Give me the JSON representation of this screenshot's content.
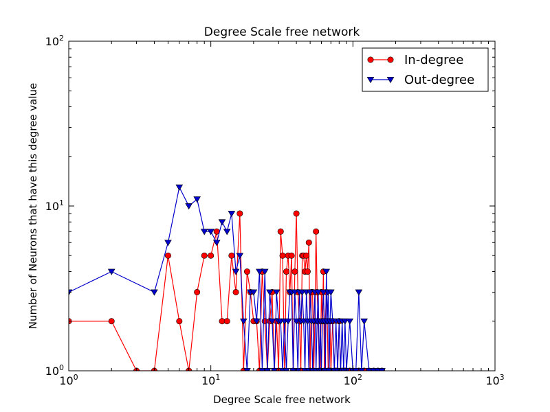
{
  "chart_data": {
    "type": "line",
    "title": "Degree Scale free network",
    "xlabel": "Degree Scale free network",
    "ylabel": "Number of Neurons that have this degree value",
    "xscale": "log",
    "yscale": "log",
    "xlim": [
      1,
      1000
    ],
    "ylim": [
      1,
      100
    ],
    "x_ticks": [
      {
        "base": "10",
        "exp": "0"
      },
      {
        "base": "10",
        "exp": "1"
      },
      {
        "base": "10",
        "exp": "2"
      },
      {
        "base": "10",
        "exp": "3"
      }
    ],
    "y_ticks": [
      {
        "base": "10",
        "exp": "0"
      },
      {
        "base": "10",
        "exp": "1"
      },
      {
        "base": "10",
        "exp": "2"
      }
    ],
    "grid": false,
    "legend_position": "top-right",
    "series": [
      {
        "name": "In-degree",
        "color": "#ff0000",
        "marker": "circle",
        "x": [
          1,
          2,
          3,
          4,
          5,
          6,
          7,
          8,
          9,
          10,
          11,
          12,
          13,
          14,
          15,
          16,
          17,
          18,
          19,
          20,
          21,
          22,
          23,
          24,
          25,
          26,
          27,
          28,
          29,
          30,
          31,
          32,
          33,
          34,
          35,
          36,
          37,
          38,
          39,
          40,
          41,
          42,
          43,
          44,
          45,
          46,
          47,
          48,
          49,
          50,
          51,
          52,
          53,
          54,
          55,
          56,
          57,
          58,
          59,
          60,
          61,
          62,
          63,
          64,
          65,
          66,
          67,
          68,
          69,
          70,
          72,
          74,
          76,
          78,
          80,
          82,
          85,
          88,
          90,
          95,
          100,
          110,
          120,
          130,
          140,
          150,
          160
        ],
        "y": [
          2,
          2,
          1,
          1,
          5,
          2,
          1,
          3,
          5,
          5,
          7,
          2,
          2,
          5,
          3,
          9,
          1,
          4,
          3,
          2,
          2,
          1,
          4,
          2,
          1,
          2,
          3,
          1,
          2,
          1,
          7,
          5,
          1,
          4,
          5,
          3,
          5,
          1,
          4,
          9,
          3,
          2,
          1,
          5,
          5,
          4,
          5,
          4,
          6,
          1,
          3,
          3,
          1,
          2,
          7,
          3,
          2,
          1,
          1,
          3,
          2,
          4,
          1,
          2,
          3,
          2,
          1,
          1,
          2,
          1,
          2,
          1,
          1,
          1,
          2,
          1,
          1,
          1,
          1,
          1,
          1,
          1,
          1,
          1,
          1,
          1,
          1
        ]
      },
      {
        "name": "Out-degree",
        "color": "#0000cc",
        "marker": "triangle-down",
        "x": [
          1,
          2,
          4,
          5,
          6,
          7,
          8,
          9,
          10,
          11,
          12,
          13,
          14,
          15,
          16,
          17,
          18,
          19,
          20,
          21,
          22,
          23,
          24,
          25,
          26,
          27,
          28,
          29,
          30,
          31,
          32,
          33,
          34,
          35,
          36,
          37,
          38,
          39,
          40,
          41,
          42,
          43,
          44,
          45,
          46,
          47,
          48,
          49,
          50,
          51,
          52,
          53,
          54,
          55,
          56,
          57,
          58,
          59,
          60,
          61,
          62,
          63,
          64,
          65,
          66,
          67,
          68,
          69,
          70,
          72,
          74,
          76,
          78,
          80,
          82,
          84,
          86,
          88,
          90,
          95,
          100,
          105,
          110,
          115,
          120,
          130,
          140,
          150,
          160
        ],
        "y": [
          3,
          4,
          3,
          6,
          13,
          10,
          11,
          7,
          7,
          6,
          8,
          7,
          9,
          4,
          5,
          2,
          1,
          3,
          3,
          2,
          4,
          1,
          4,
          1,
          3,
          2,
          1,
          3,
          2,
          2,
          1,
          2,
          1,
          2,
          3,
          3,
          1,
          3,
          2,
          1,
          3,
          2,
          3,
          2,
          1,
          3,
          2,
          1,
          3,
          2,
          1,
          2,
          3,
          1,
          2,
          3,
          1,
          2,
          1,
          2,
          3,
          2,
          1,
          4,
          2,
          3,
          1,
          2,
          3,
          2,
          1,
          2,
          1,
          2,
          1,
          2,
          1,
          2,
          1,
          2,
          1,
          1,
          3,
          1,
          2,
          1,
          1,
          1,
          1
        ]
      }
    ]
  }
}
